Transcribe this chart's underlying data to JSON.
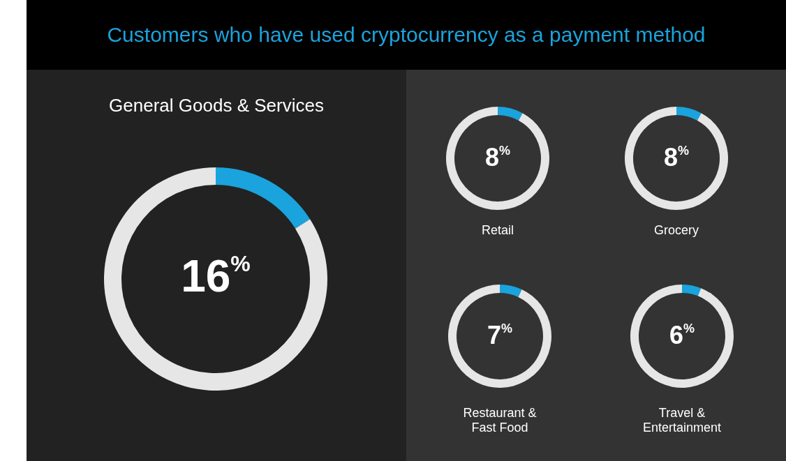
{
  "chart_data": [
    {
      "type": "donut",
      "title": "Customers who have used cryptocurrency as a payment method",
      "subtitle": "General Goods & Services",
      "categories": [
        null,
        null
      ],
      "values": [
        16,
        84
      ],
      "colors": [
        "#1aa3dc",
        "#e6e6e6"
      ],
      "value_labels": [
        "16$^{%}$",
        null
      ]
    },
    {
      "type": "donut",
      "title": "Retail",
      "categories": [
        null,
        null
      ],
      "values": [
        8,
        92
      ],
      "colors": [
        "#1aa3dc",
        "#e6e6e6"
      ],
      "value_labels": [
        "8$^{%}$",
        null
      ]
    },
    {
      "type": "donut",
      "title": "Grocery",
      "categories": [
        null,
        null
      ],
      "values": [
        8,
        92
      ],
      "colors": [
        "#1aa3dc",
        "#e6e6e6"
      ],
      "value_labels": [
        "8$^{%}$",
        null
      ]
    },
    {
      "type": "donut",
      "title": "Restaurant & Fast Food",
      "categories": [
        null,
        null
      ],
      "values": [
        7,
        93
      ],
      "colors": [
        "#1aa3dc",
        "#e6e6e6"
      ],
      "value_labels": [
        "7$^{%}$",
        null
      ]
    },
    {
      "type": "donut",
      "title": "Travel & Entertainment",
      "categories": [
        null,
        null
      ],
      "values": [
        6,
        94
      ],
      "colors": [
        "#1aa3dc",
        "#e6e6e6"
      ],
      "value_labels": [
        "6$^{%}$",
        null
      ]
    }
  ]
}
